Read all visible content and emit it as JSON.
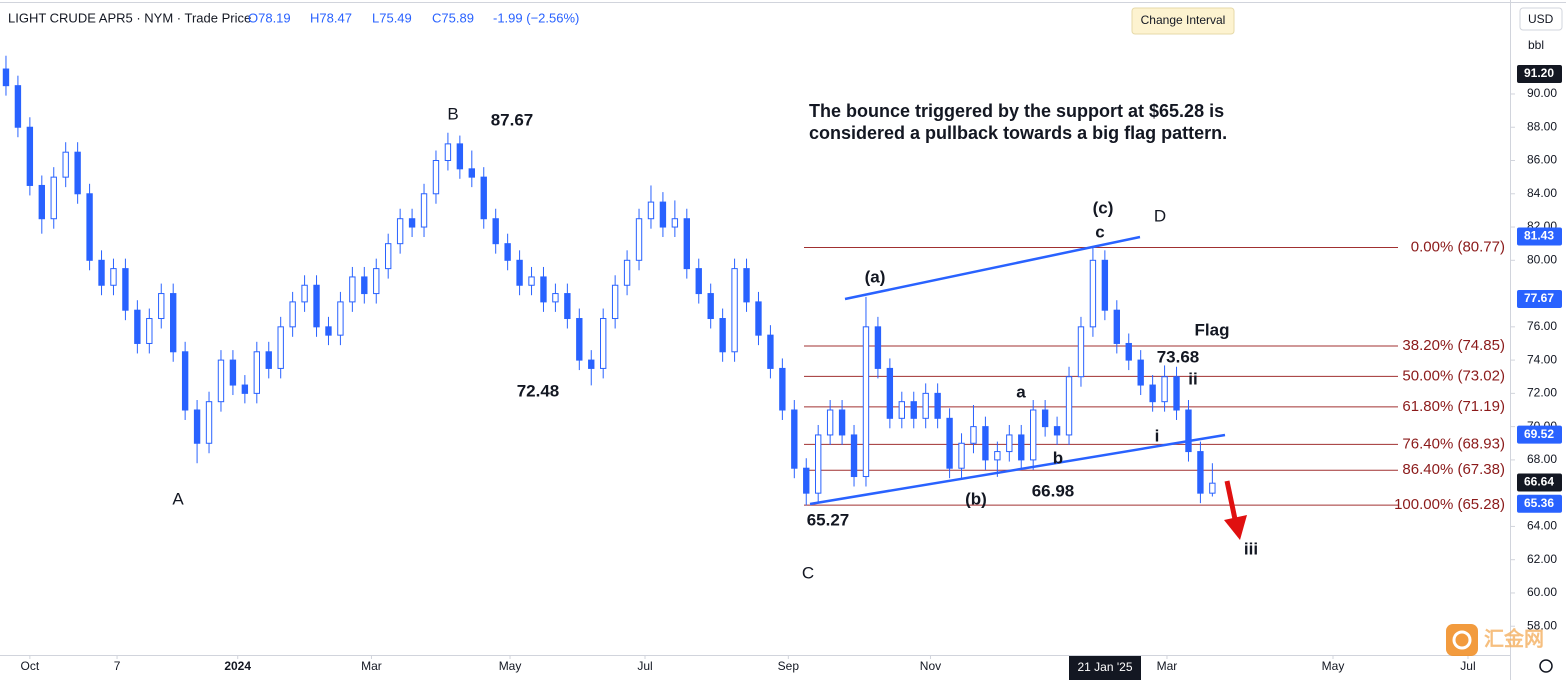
{
  "chart_data": {
    "type": "candlestick",
    "header": {
      "symbol": "LIGHT CRUDE APR5 · NYM · Trade Price",
      "open": "O78.19",
      "high": "H78.47",
      "low": "L75.49",
      "close": "C75.89",
      "change": "-1.99 (−2.56%)"
    },
    "note": [
      "The bounce triggered by the support at $65.28 is",
      "considered a pullback towards a big flag pattern."
    ],
    "color": "#2962ff",
    "ohlc": [
      [
        91.5,
        92.3,
        89.9,
        90.5
      ],
      [
        90.5,
        91.1,
        87.4,
        88
      ],
      [
        88,
        88.6,
        83.9,
        84.5
      ],
      [
        84.5,
        85.1,
        81.6,
        82.5
      ],
      [
        82.5,
        85.6,
        81.9,
        85
      ],
      [
        85,
        87.1,
        84.4,
        86.5
      ],
      [
        86.5,
        87.1,
        83.4,
        84
      ],
      [
        84,
        84.6,
        79.4,
        80
      ],
      [
        80,
        80.6,
        77.9,
        78.5
      ],
      [
        78.5,
        80.1,
        77.9,
        79.5
      ],
      [
        79.5,
        80.1,
        76.4,
        77
      ],
      [
        77,
        77.6,
        74.4,
        75
      ],
      [
        75,
        77.1,
        74.4,
        76.5
      ],
      [
        76.5,
        78.6,
        75.9,
        78
      ],
      [
        78,
        78.6,
        73.9,
        74.5
      ],
      [
        74.5,
        75.1,
        70.4,
        71
      ],
      [
        71,
        71.6,
        67.8,
        69
      ],
      [
        69,
        72.1,
        68.4,
        71.5
      ],
      [
        71.5,
        74.6,
        70.9,
        74
      ],
      [
        74,
        74.6,
        71.9,
        72.5
      ],
      [
        72.5,
        73.1,
        71.4,
        72
      ],
      [
        72,
        75.1,
        71.4,
        74.5
      ],
      [
        74.5,
        75.1,
        72.9,
        73.5
      ],
      [
        73.5,
        76.6,
        72.9,
        76
      ],
      [
        76,
        78.1,
        75.4,
        77.5
      ],
      [
        77.5,
        79.1,
        76.9,
        78.5
      ],
      [
        78.5,
        79.1,
        75.4,
        76
      ],
      [
        76,
        76.6,
        74.9,
        75.5
      ],
      [
        75.5,
        78.1,
        74.9,
        77.5
      ],
      [
        77.5,
        79.6,
        76.9,
        79
      ],
      [
        79,
        79.6,
        77.4,
        78
      ],
      [
        78,
        80.1,
        77.4,
        79.5
      ],
      [
        79.5,
        81.6,
        78.9,
        81
      ],
      [
        81,
        83.1,
        80.4,
        82.5
      ],
      [
        82.5,
        83.1,
        81.4,
        82
      ],
      [
        82,
        84.6,
        81.4,
        84
      ],
      [
        84,
        86.6,
        83.4,
        86
      ],
      [
        86,
        87.67,
        85.4,
        87
      ],
      [
        87,
        87.5,
        84.9,
        85.5
      ],
      [
        85.5,
        86.6,
        84.4,
        85
      ],
      [
        85,
        85.6,
        81.9,
        82.5
      ],
      [
        82.5,
        83.1,
        80.4,
        81
      ],
      [
        81,
        81.6,
        79.4,
        80
      ],
      [
        80,
        80.6,
        77.9,
        78.5
      ],
      [
        78.5,
        79.6,
        77.9,
        79
      ],
      [
        79,
        79.6,
        76.9,
        77.5
      ],
      [
        77.5,
        78.6,
        76.9,
        78
      ],
      [
        78,
        78.6,
        75.9,
        76.5
      ],
      [
        76.5,
        77.1,
        73.4,
        74
      ],
      [
        74,
        74.6,
        72.48,
        73.5
      ],
      [
        73.5,
        77.1,
        72.9,
        76.5
      ],
      [
        76.5,
        79.1,
        75.9,
        78.5
      ],
      [
        78.5,
        80.6,
        77.9,
        80
      ],
      [
        80,
        83.1,
        79.4,
        82.5
      ],
      [
        82.5,
        84.5,
        81.9,
        83.5
      ],
      [
        83.5,
        84.1,
        81.4,
        82
      ],
      [
        82,
        83.6,
        81.4,
        82.5
      ],
      [
        82.5,
        83.1,
        78.9,
        79.5
      ],
      [
        79.5,
        80.1,
        77.4,
        78
      ],
      [
        78,
        78.6,
        75.9,
        76.5
      ],
      [
        76.5,
        77.1,
        73.9,
        74.5
      ],
      [
        74.5,
        80.1,
        73.9,
        79.5
      ],
      [
        79.5,
        80.1,
        76.9,
        77.5
      ],
      [
        77.5,
        78.1,
        74.9,
        75.5
      ],
      [
        75.5,
        76.1,
        72.9,
        73.5
      ],
      [
        73.5,
        74.1,
        70.4,
        71
      ],
      [
        71,
        71.6,
        66.9,
        67.5
      ],
      [
        67.5,
        68.1,
        65.27,
        66
      ],
      [
        66,
        70.1,
        65.4,
        69.5
      ],
      [
        69.5,
        71.6,
        68.9,
        71
      ],
      [
        71,
        71.6,
        68.9,
        69.5
      ],
      [
        69.5,
        70.1,
        66.4,
        67
      ],
      [
        67,
        77.8,
        66.4,
        76
      ],
      [
        76,
        76.6,
        72.9,
        73.5
      ],
      [
        73.5,
        74.1,
        69.9,
        70.5
      ],
      [
        70.5,
        72.1,
        69.9,
        71.5
      ],
      [
        71.5,
        72.1,
        69.9,
        70.5
      ],
      [
        70.5,
        72.6,
        69.9,
        72
      ],
      [
        72,
        72.6,
        69.9,
        70.5
      ],
      [
        70.5,
        71.1,
        66.9,
        67.5
      ],
      [
        67.5,
        69.6,
        66.9,
        69
      ],
      [
        69,
        71.3,
        68.4,
        70
      ],
      [
        70,
        70.6,
        67.4,
        68
      ],
      [
        68,
        69.1,
        66.98,
        68.5
      ],
      [
        68.5,
        70.1,
        67.9,
        69.5
      ],
      [
        69.5,
        70.1,
        67.4,
        68
      ],
      [
        68,
        71.6,
        67.4,
        71
      ],
      [
        71,
        71.6,
        69.4,
        70
      ],
      [
        70,
        70.6,
        68.9,
        69.5
      ],
      [
        69.5,
        73.6,
        68.9,
        73
      ],
      [
        73,
        76.6,
        72.4,
        76
      ],
      [
        76,
        80.77,
        75.4,
        80
      ],
      [
        80,
        80.6,
        76.4,
        77
      ],
      [
        77,
        77.6,
        74.4,
        75
      ],
      [
        75,
        75.6,
        73.4,
        74
      ],
      [
        74,
        74.6,
        71.9,
        72.5
      ],
      [
        72.5,
        73.1,
        70.9,
        71.5
      ],
      [
        71.5,
        73.68,
        70.9,
        73
      ],
      [
        73,
        73.6,
        70.4,
        71
      ],
      [
        71,
        71.6,
        67.9,
        68.5
      ],
      [
        68.5,
        69.1,
        65.4,
        66
      ],
      [
        66,
        67.8,
        65.8,
        66.6
      ]
    ],
    "xlim": [
      -0.5,
      125.5
    ],
    "xticks": [
      {
        "value": 2,
        "label": "Oct"
      },
      {
        "value": 9.3,
        "label": "7"
      },
      {
        "value": 19.4,
        "label": "2024"
      },
      {
        "value": 30.6,
        "label": "Mar"
      },
      {
        "value": 42.2,
        "label": "May"
      },
      {
        "value": 53.5,
        "label": "Jul"
      },
      {
        "value": 65.5,
        "label": "Sep"
      },
      {
        "value": 77.4,
        "label": "Nov"
      },
      {
        "value": 97.2,
        "label": "Mar"
      },
      {
        "value": 111.1,
        "label": "May"
      },
      {
        "value": 122.4,
        "label": "Jul"
      }
    ],
    "ylim": [
      56.27,
      95.65
    ],
    "yticks": [
      {
        "value": 58,
        "label": "58.00"
      },
      {
        "value": 60,
        "label": "60.00"
      },
      {
        "value": 62,
        "label": "62.00"
      },
      {
        "value": 64,
        "label": "64.00"
      },
      {
        "value": 68,
        "label": "68.00"
      },
      {
        "value": 70,
        "label": "70.00"
      },
      {
        "value": 72,
        "label": "72.00"
      },
      {
        "value": 74,
        "label": "74.00"
      },
      {
        "value": 76,
        "label": "76.00"
      },
      {
        "value": 80,
        "label": "80.00"
      },
      {
        "value": 82,
        "label": "82.00"
      },
      {
        "value": 84,
        "label": "84.00"
      },
      {
        "value": 86,
        "label": "86.00"
      },
      {
        "value": 88,
        "label": "88.00"
      },
      {
        "value": 90,
        "label": "90.00"
      }
    ],
    "price_tags": [
      {
        "value": 91.2,
        "label": "91.20",
        "color": "#131722"
      },
      {
        "value": 81.43,
        "label": "81.43",
        "color": "#2962ff"
      },
      {
        "value": 77.67,
        "label": "77.67",
        "color": "#2962ff"
      },
      {
        "value": 69.52,
        "label": "69.52",
        "color": "#2962ff"
      },
      {
        "value": 66.64,
        "label": "66.64",
        "color": "#131722"
      },
      {
        "value": 65.36,
        "label": "65.36",
        "color": "#2962ff"
      }
    ],
    "fib_color": "#a03030",
    "fib_levels": [
      {
        "value": 80.77,
        "label": "0.00% (80.77)"
      },
      {
        "value": 74.85,
        "label": "38.20% (74.85)"
      },
      {
        "value": 73.02,
        "label": "50.00% (73.02)"
      },
      {
        "value": 71.19,
        "label": "61.80% (71.19)"
      },
      {
        "value": 68.93,
        "label": "76.40% (68.93)"
      },
      {
        "value": 67.38,
        "label": "86.40% (67.38)"
      },
      {
        "value": 65.28,
        "label": "100.00% (65.28)"
      }
    ],
    "annotations": [
      "A",
      "B",
      "C",
      "87.67",
      "72.48",
      "65.27",
      "(a)",
      "(b)",
      "(c)",
      "D",
      "a",
      "b",
      "c",
      "66.98",
      "Flag",
      "73.68",
      "i",
      "ii",
      "iii"
    ]
  },
  "ui": {
    "tooltip": "Change Interval",
    "currency": "USD",
    "unit": "bbl",
    "crosshair_date": "21 Jan '25",
    "watermark": "汇金网"
  }
}
